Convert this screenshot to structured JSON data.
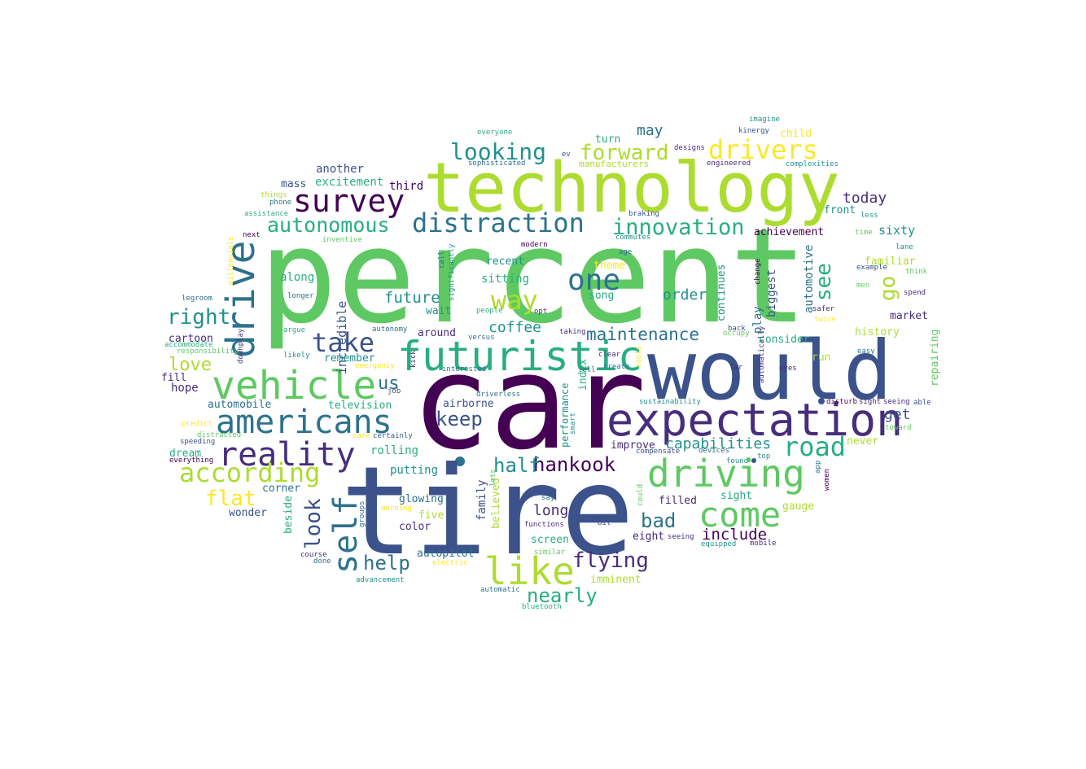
{
  "palette": {
    "dark_purple": "#440154",
    "indigo": "#472d7b",
    "slate_blue": "#3b528b",
    "steel_blue": "#2c728e",
    "teal": "#21918c",
    "sea_green": "#28ae80",
    "green": "#5ec962",
    "lime": "#addc30",
    "yellow": "#fde725"
  },
  "words": [
    {
      "text": "percent",
      "color": "green"
    },
    {
      "text": "car",
      "color": "dark_purple"
    },
    {
      "text": "tire",
      "color": "slate_blue"
    },
    {
      "text": "would",
      "color": "slate_blue"
    },
    {
      "text": "technology",
      "color": "lime"
    },
    {
      "text": "expectation",
      "color": "indigo"
    },
    {
      "text": "futuristic",
      "color": "sea_green"
    },
    {
      "text": "vehicle",
      "color": "green"
    },
    {
      "text": "americans",
      "color": "steel_blue"
    },
    {
      "text": "reality",
      "color": "indigo"
    },
    {
      "text": "driving",
      "color": "green"
    },
    {
      "text": "drive",
      "color": "steel_blue"
    },
    {
      "text": "come",
      "color": "green"
    },
    {
      "text": "survey",
      "color": "dark_purple"
    },
    {
      "text": "self",
      "color": "steel_blue"
    },
    {
      "text": "like",
      "color": "lime"
    },
    {
      "text": "distraction",
      "color": "steel_blue"
    },
    {
      "text": "drivers",
      "color": "yellow"
    },
    {
      "text": "according",
      "color": "lime"
    },
    {
      "text": "road",
      "color": "sea_green"
    },
    {
      "text": "take",
      "color": "slate_blue"
    },
    {
      "text": "one",
      "color": "steel_blue"
    },
    {
      "text": "way",
      "color": "lime"
    },
    {
      "text": "looking",
      "color": "teal"
    },
    {
      "text": "forward",
      "color": "lime"
    },
    {
      "text": "innovation",
      "color": "sea_green"
    },
    {
      "text": "autonomous",
      "color": "sea_green"
    },
    {
      "text": "flying",
      "color": "indigo"
    },
    {
      "text": "hankook",
      "color": "dark_purple"
    },
    {
      "text": "look",
      "color": "slate_blue"
    },
    {
      "text": "flat",
      "color": "yellow"
    },
    {
      "text": "right",
      "color": "teal"
    },
    {
      "text": "help",
      "color": "steel_blue"
    },
    {
      "text": "nearly",
      "color": "sea_green"
    },
    {
      "text": "half",
      "color": "teal"
    },
    {
      "text": "keep",
      "color": "slate_blue"
    },
    {
      "text": "bad",
      "color": "steel_blue"
    },
    {
      "text": "maintenance",
      "color": "steel_blue"
    },
    {
      "text": "us",
      "color": "steel_blue"
    },
    {
      "text": "see",
      "color": "sea_green"
    },
    {
      "text": "love",
      "color": "lime"
    },
    {
      "text": "capabilities",
      "color": "teal"
    },
    {
      "text": "go",
      "color": "lime"
    },
    {
      "text": "future",
      "color": "teal"
    },
    {
      "text": "include",
      "color": "dark_purple"
    },
    {
      "text": "long",
      "color": "indigo"
    },
    {
      "text": "coffee",
      "color": "teal"
    },
    {
      "text": "today",
      "color": "indigo"
    },
    {
      "text": "may",
      "color": "steel_blue"
    },
    {
      "text": "order",
      "color": "teal"
    },
    {
      "text": "get",
      "color": "slate_blue"
    },
    {
      "text": "sixty",
      "color": "teal"
    },
    {
      "text": "incredible",
      "color": "slate_blue"
    },
    {
      "text": "automotive",
      "color": "steel_blue"
    },
    {
      "text": "continues",
      "color": "teal"
    },
    {
      "text": "biggest",
      "color": "slate_blue"
    },
    {
      "text": "performance",
      "color": "teal"
    },
    {
      "text": "family",
      "color": "slate_blue"
    },
    {
      "text": "believed",
      "color": "lime"
    },
    {
      "text": "index",
      "color": "sea_green"
    },
    {
      "text": "repairing",
      "color": "green"
    },
    {
      "text": "play",
      "color": "steel_blue"
    },
    {
      "text": "beside",
      "color": "sea_green"
    },
    {
      "text": "millennials",
      "color": "yellow"
    },
    {
      "text": "another",
      "color": "slate_blue"
    },
    {
      "text": "excitement",
      "color": "sea_green"
    },
    {
      "text": "third",
      "color": "dark_purple"
    },
    {
      "text": "mass",
      "color": "slate_blue"
    },
    {
      "text": "along",
      "color": "sea_green"
    },
    {
      "text": "sitting",
      "color": "sea_green"
    },
    {
      "text": "recent",
      "color": "teal"
    },
    {
      "text": "theme",
      "color": "yellow"
    },
    {
      "text": "song",
      "color": "sea_green"
    },
    {
      "text": "wait",
      "color": "teal"
    },
    {
      "text": "around",
      "color": "indigo"
    },
    {
      "text": "cartoon",
      "color": "indigo"
    },
    {
      "text": "remember",
      "color": "teal"
    },
    {
      "text": "fill",
      "color": "indigo"
    },
    {
      "text": "hope",
      "color": "indigo"
    },
    {
      "text": "automobile",
      "color": "steel_blue"
    },
    {
      "text": "television",
      "color": "sea_green"
    },
    {
      "text": "airborne",
      "color": "slate_blue"
    },
    {
      "text": "rolling",
      "color": "sea_green"
    },
    {
      "text": "dream",
      "color": "sea_green"
    },
    {
      "text": "putting",
      "color": "teal"
    },
    {
      "text": "corner",
      "color": "steel_blue"
    },
    {
      "text": "wonder",
      "color": "slate_blue"
    },
    {
      "text": "glowing",
      "color": "steel_blue"
    },
    {
      "text": "five",
      "color": "lime"
    },
    {
      "text": "color",
      "color": "indigo"
    },
    {
      "text": "autopilot",
      "color": "steel_blue"
    },
    {
      "text": "imminent",
      "color": "lime"
    },
    {
      "text": "screen",
      "color": "sea_green"
    },
    {
      "text": "filled",
      "color": "indigo"
    },
    {
      "text": "sight",
      "color": "sea_green"
    },
    {
      "text": "gauge",
      "color": "lime"
    },
    {
      "text": "eight",
      "color": "indigo"
    },
    {
      "text": "improve",
      "color": "indigo"
    },
    {
      "text": "turn",
      "color": "sea_green"
    },
    {
      "text": "front",
      "color": "teal"
    },
    {
      "text": "achievement",
      "color": "dark_purple"
    },
    {
      "text": "familiar",
      "color": "lime"
    },
    {
      "text": "market",
      "color": "indigo"
    },
    {
      "text": "history",
      "color": "lime"
    },
    {
      "text": "consider",
      "color": "sea_green"
    },
    {
      "text": "run",
      "color": "lime"
    },
    {
      "text": "never",
      "color": "lime"
    },
    {
      "text": "child",
      "color": "yellow"
    },
    {
      "text": "manufacturers",
      "color": "lime"
    },
    {
      "text": "everyone",
      "color": "sea_green"
    },
    {
      "text": "sophisticated",
      "color": "steel_blue"
    },
    {
      "text": "ev",
      "color": "slate_blue"
    },
    {
      "text": "designs",
      "color": "indigo"
    },
    {
      "text": "engineered",
      "color": "indigo"
    },
    {
      "text": "imagine",
      "color": "teal"
    },
    {
      "text": "kinergy",
      "color": "slate_blue"
    },
    {
      "text": "complexities",
      "color": "teal"
    },
    {
      "text": "things",
      "color": "lime"
    },
    {
      "text": "phone",
      "color": "steel_blue"
    },
    {
      "text": "assistance",
      "color": "sea_green"
    },
    {
      "text": "next",
      "color": "dark_purple"
    },
    {
      "text": "inventive",
      "color": "green"
    },
    {
      "text": "legroom",
      "color": "steel_blue"
    },
    {
      "text": "longer",
      "color": "steel_blue"
    },
    {
      "text": "argue",
      "color": "sea_green"
    },
    {
      "text": "accommodate",
      "color": "sea_green"
    },
    {
      "text": "responsibility",
      "color": "green"
    },
    {
      "text": "likely",
      "color": "teal"
    },
    {
      "text": "downplay",
      "color": "indigo"
    },
    {
      "text": "kick",
      "color": "indigo"
    },
    {
      "text": "interested",
      "color": "steel_blue"
    },
    {
      "text": "people",
      "color": "sea_green"
    },
    {
      "text": "versus",
      "color": "steel_blue"
    },
    {
      "text": "autonomy",
      "color": "steel_blue"
    },
    {
      "text": "emergency",
      "color": "yellow"
    },
    {
      "text": "certainly",
      "color": "slate_blue"
    },
    {
      "text": "job",
      "color": "slate_blue"
    },
    {
      "text": "driverless",
      "color": "steel_blue"
    },
    {
      "text": "predict",
      "color": "yellow"
    },
    {
      "text": "distracted",
      "color": "green"
    },
    {
      "text": "speeding",
      "color": "slate_blue"
    },
    {
      "text": "everything",
      "color": "dark_purple"
    },
    {
      "text": "care",
      "color": "yellow"
    },
    {
      "text": "course",
      "color": "indigo"
    },
    {
      "text": "done",
      "color": "steel_blue"
    },
    {
      "text": "advancement",
      "color": "teal"
    },
    {
      "text": "electric",
      "color": "yellow"
    },
    {
      "text": "automatic",
      "color": "steel_blue"
    },
    {
      "text": "bluetooth",
      "color": "sea_green"
    },
    {
      "text": "similar",
      "color": "green"
    },
    {
      "text": "functions",
      "color": "indigo"
    },
    {
      "text": "morning",
      "color": "yellow"
    },
    {
      "text": "groups",
      "color": "steel_blue"
    },
    {
      "text": "lots",
      "color": "green"
    },
    {
      "text": "say",
      "color": "steel_blue"
    },
    {
      "text": "smart",
      "color": "teal"
    },
    {
      "text": "could",
      "color": "green"
    },
    {
      "text": "oil",
      "color": "slate_blue"
    },
    {
      "text": "seeing",
      "color": "indigo"
    },
    {
      "text": "mobile",
      "color": "indigo"
    },
    {
      "text": "equipped",
      "color": "teal"
    },
    {
      "text": "devices",
      "color": "steel_blue"
    },
    {
      "text": "compensate",
      "color": "slate_blue"
    },
    {
      "text": "top",
      "color": "teal"
    },
    {
      "text": "found",
      "color": "teal"
    },
    {
      "text": "app",
      "color": "steel_blue"
    },
    {
      "text": "women",
      "color": "dark_purple"
    },
    {
      "text": "sustainability",
      "color": "teal"
    },
    {
      "text": "disturb",
      "color": "dark_purple"
    },
    {
      "text": "sight",
      "color": "indigo"
    },
    {
      "text": "seeing",
      "color": "indigo"
    },
    {
      "text": "able",
      "color": "slate_blue"
    },
    {
      "text": "toward",
      "color": "green"
    },
    {
      "text": "tell",
      "color": "steel_blue"
    },
    {
      "text": "far",
      "color": "indigo"
    },
    {
      "text": "eyes",
      "color": "indigo"
    },
    {
      "text": "create",
      "color": "steel_blue"
    },
    {
      "text": "clear",
      "color": "indigo"
    },
    {
      "text": "tools",
      "color": "yellow"
    },
    {
      "text": "automatically",
      "color": "indigo"
    },
    {
      "text": "taking",
      "color": "indigo"
    },
    {
      "text": "back",
      "color": "slate_blue"
    },
    {
      "text": "occupy",
      "color": "green"
    },
    {
      "text": "easy",
      "color": "steel_blue"
    },
    {
      "text": "safer",
      "color": "indigo"
    },
    {
      "text": "twice",
      "color": "yellow"
    },
    {
      "text": "men",
      "color": "green"
    },
    {
      "text": "example",
      "color": "slate_blue"
    },
    {
      "text": "think",
      "color": "green"
    },
    {
      "text": "spend",
      "color": "indigo"
    },
    {
      "text": "lane",
      "color": "teal"
    },
    {
      "text": "time",
      "color": "green"
    },
    {
      "text": "less",
      "color": "teal"
    },
    {
      "text": "change",
      "color": "dark_purple"
    },
    {
      "text": "commutes",
      "color": "teal"
    },
    {
      "text": "braking",
      "color": "slate_blue"
    },
    {
      "text": "age",
      "color": "steel_blue"
    },
    {
      "text": "modern",
      "color": "dark_purple"
    },
    {
      "text": "opt",
      "color": "indigo"
    },
    {
      "text": "call",
      "color": "steel_blue"
    },
    {
      "text": "significantly",
      "color": "teal"
    }
  ]
}
